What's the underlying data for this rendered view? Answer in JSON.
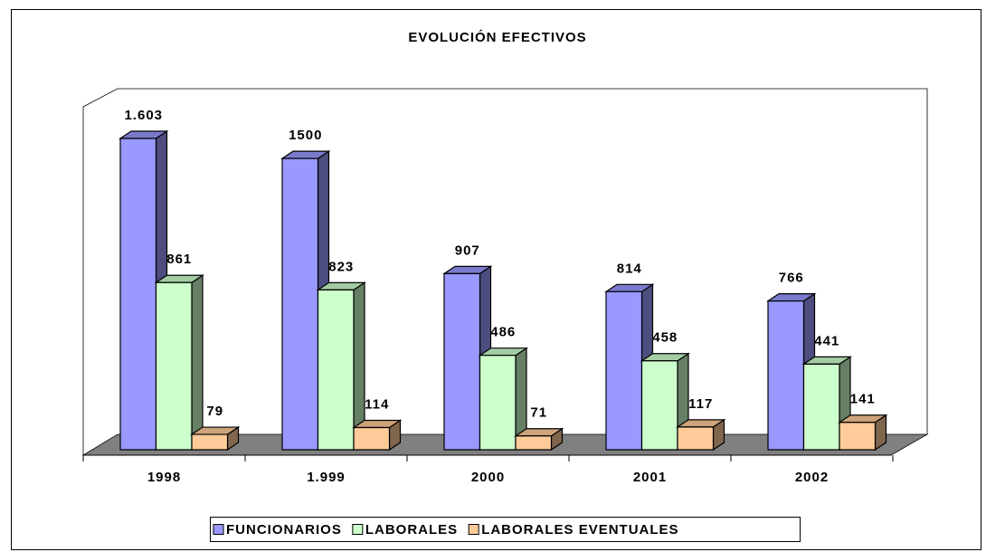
{
  "chart_data": {
    "type": "bar3d",
    "title": "EVOLUCIÓN EFECTIVOS",
    "categories": [
      "1998",
      "1.999",
      "2000",
      "2001",
      "2002"
    ],
    "series": [
      {
        "name": "FUNCIONARIOS",
        "color": "#9999ff",
        "values": [
          1603,
          1500,
          907,
          814,
          766
        ],
        "value_labels": [
          "1.603",
          "1500",
          "907",
          "814",
          "766"
        ]
      },
      {
        "name": "LABORALES",
        "color": "#ccffcc",
        "values": [
          861,
          823,
          486,
          458,
          441
        ]
      },
      {
        "name": "LABORALES EVENTUALES",
        "color": "#ffcc99",
        "values": [
          79,
          114,
          71,
          117,
          141
        ]
      }
    ],
    "legend": "bottom"
  }
}
